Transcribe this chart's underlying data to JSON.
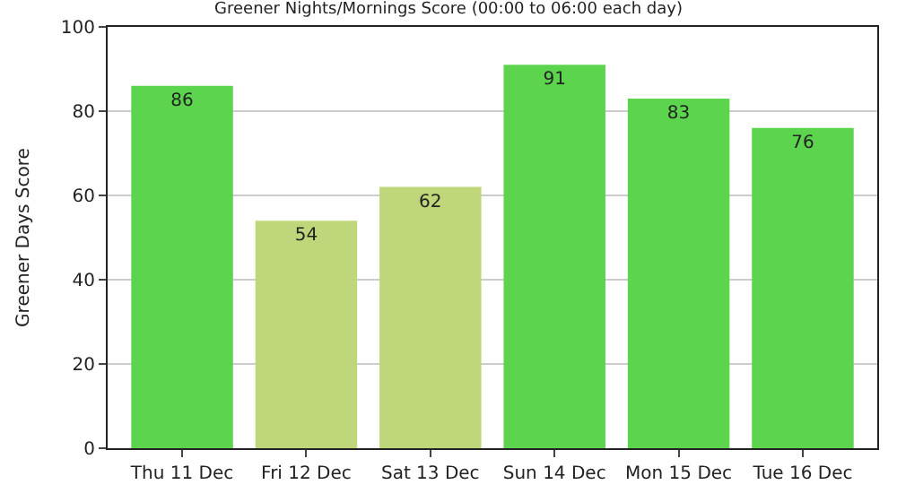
{
  "chart_data": {
    "type": "bar",
    "title": "Greener Nights/Mornings Score (00:00 to 06:00 each day)",
    "ylabel": "Greener Days Score",
    "categories": [
      "Thu 11 Dec",
      "Fri 12 Dec",
      "Sat 13 Dec",
      "Sun 14 Dec",
      "Mon 15 Dec",
      "Tue 16 Dec"
    ],
    "values": [
      86,
      54,
      62,
      91,
      83,
      76
    ],
    "colors": [
      "#5cd44e",
      "#bfd67a",
      "#bfd67a",
      "#5cd44e",
      "#5cd44e",
      "#5cd44e"
    ],
    "ylim": [
      0,
      100
    ],
    "yticks": [
      0,
      20,
      40,
      60,
      80,
      100
    ],
    "grid": "y",
    "data_labels": true
  }
}
